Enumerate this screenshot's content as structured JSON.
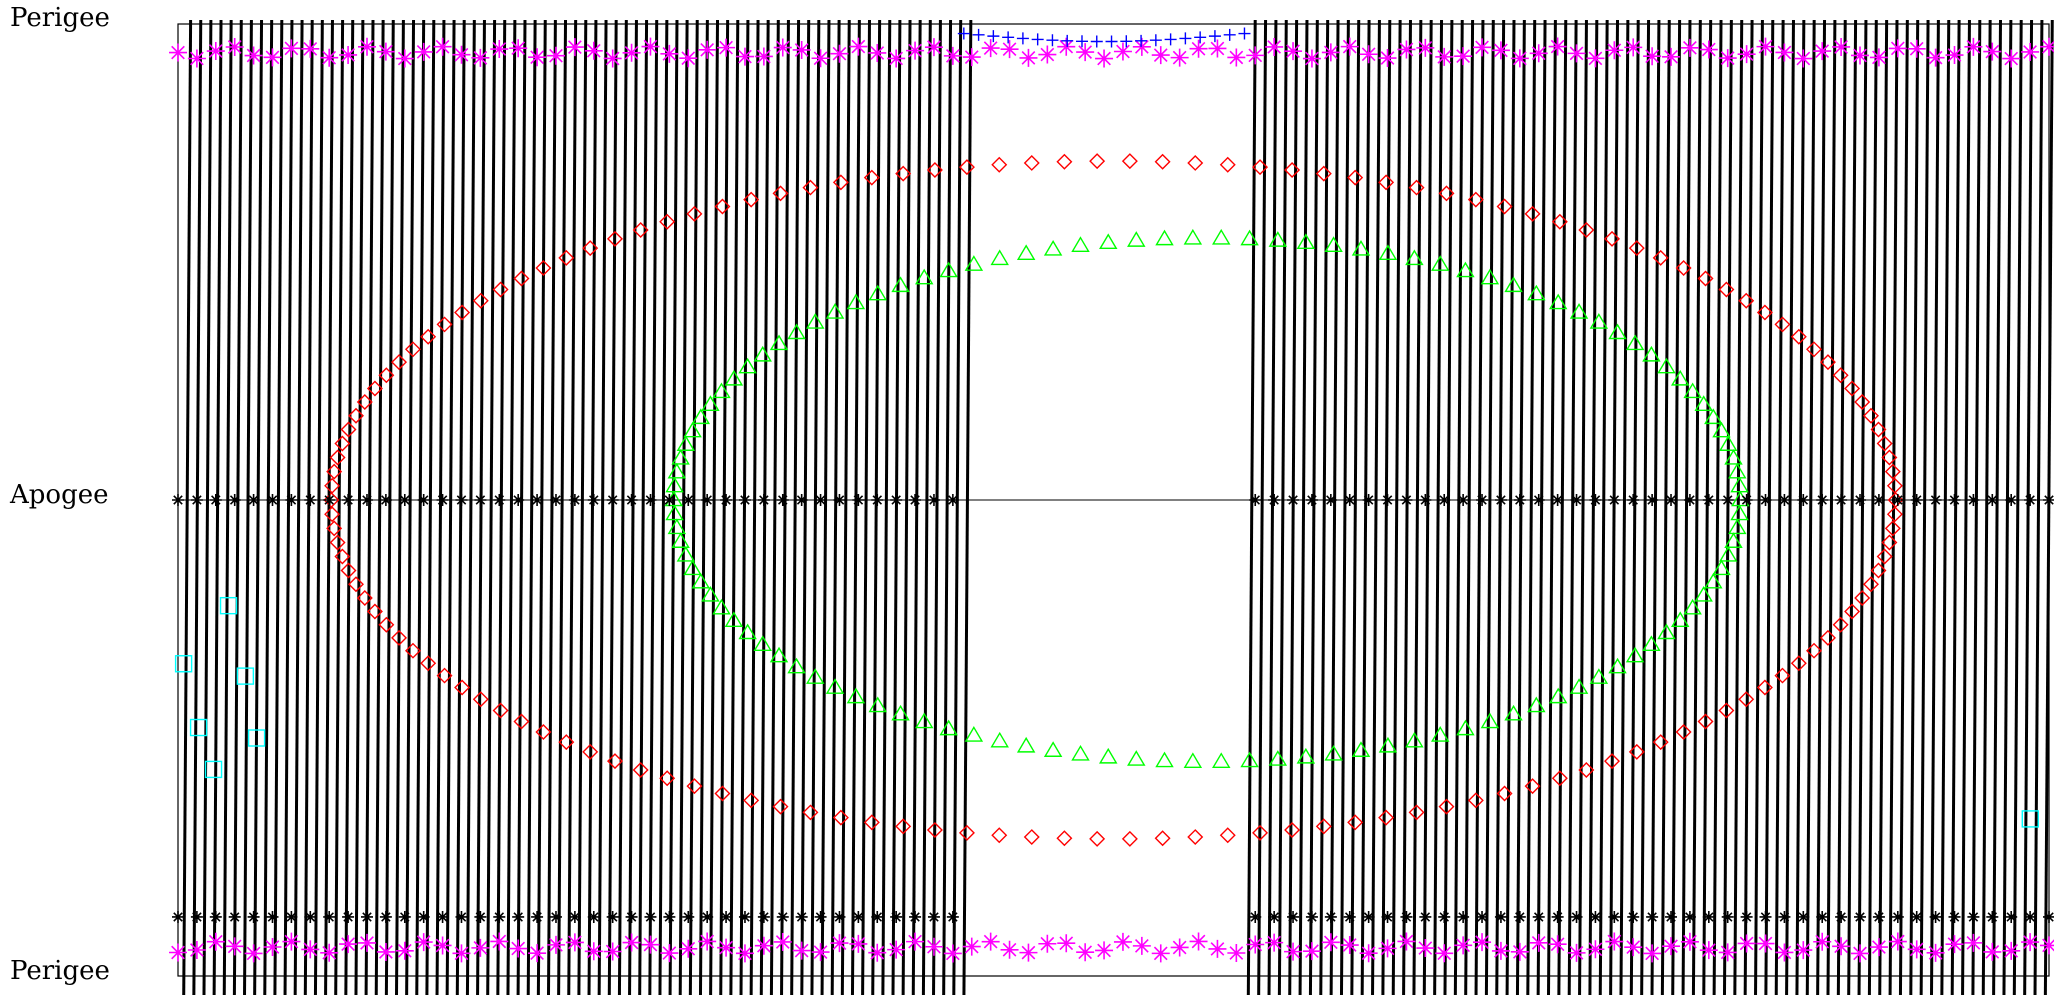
{
  "chart_data": {
    "type": "scatter",
    "title": "",
    "xlabel": "",
    "ylabel": "",
    "y_tick_labels": [
      "Perigee",
      "Apogee",
      "Perigee"
    ],
    "y_ticks": [
      0,
      0.5,
      1
    ],
    "ylim": [
      0,
      1
    ],
    "xlim": [
      0,
      1
    ],
    "grid": false,
    "legend": "none",
    "colors": {
      "orbit_tracks": "#000000",
      "asterisk_markers": "#ff00ff",
      "plus_markers": "#0000ff",
      "diamond_markers": "#ff0000",
      "triangle_markers": "#00ff00",
      "square_markers": "#00ffff",
      "reference_lines": "#000000"
    },
    "tracks": {
      "description_phase_range": [
        -0.02,
        1.04
      ],
      "gaps": [
        [
          0.42,
          0.572
        ]
      ],
      "count_left": 78,
      "count_right": 78
    },
    "series": [
      {
        "marker": "diamond",
        "color": "#ff0000",
        "shape": "ellipse",
        "center": [
          0.5,
          0.5
        ],
        "x_radius": 0.418,
        "y_radius": 0.356,
        "points": 150
      },
      {
        "marker": "triangle",
        "color": "#00ff00",
        "shape": "ellipse",
        "center": [
          0.55,
          0.5
        ],
        "x_radius": 0.285,
        "y_radius": 0.275,
        "points": 118
      },
      {
        "marker": "asterisk",
        "color": "#ff00ff",
        "y": [
          0.03,
          0.97
        ],
        "x_range": [
          0.0,
          1.0
        ],
        "points_per_row": 100
      },
      {
        "marker": "plus",
        "color": "#0000ff",
        "y": 0.01,
        "x_range": [
          0.42,
          0.57
        ],
        "points": 20
      },
      {
        "marker": "square",
        "color": "#00ffff",
        "x": [
          0.003,
          0.027,
          0.036,
          0.011,
          0.019,
          0.042,
          0.99
        ],
        "y": [
          0.672,
          0.611,
          0.685,
          0.739,
          0.783,
          0.75,
          0.835
        ]
      },
      {
        "marker": "asterisk",
        "color": "#000000",
        "y": [
          0.5,
          0.938
        ],
        "x_range": [
          0.0,
          1.0
        ],
        "points_per_row": 100
      }
    ]
  }
}
